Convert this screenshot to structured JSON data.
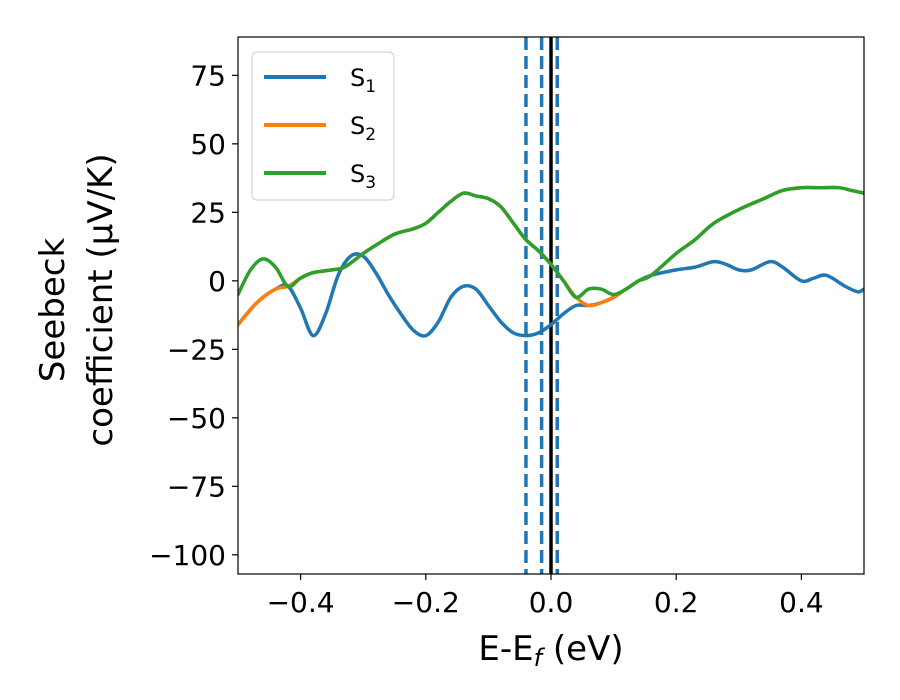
{
  "chart_data": {
    "type": "line",
    "xlabel": "E-E",
    "xlabel_sub": "f",
    "xlabel_unit": " (eV)",
    "ylabel_line1": "Seebeck",
    "ylabel_line2": "coefficient  (μV/K)",
    "xlim": [
      -0.5,
      0.5
    ],
    "ylim": [
      -107,
      89
    ],
    "xticks": [
      -0.4,
      -0.2,
      0.0,
      0.2,
      0.4
    ],
    "xtick_labels": [
      "−0.4",
      "−0.2",
      "0.0",
      "0.2",
      "0.4"
    ],
    "yticks": [
      75,
      50,
      25,
      0,
      -25,
      -50,
      -75,
      -100
    ],
    "ytick_labels": [
      "75",
      "50",
      "25",
      "0",
      "−25",
      "−50",
      "−75",
      "−100"
    ],
    "grid": false,
    "legend_position": "top-left",
    "vlines": [
      {
        "x": -0.04,
        "style": "dashed",
        "color": "#1f77b4"
      },
      {
        "x": -0.015,
        "style": "dashed",
        "color": "#1f77b4"
      },
      {
        "x": 0.01,
        "style": "dashed",
        "color": "#1f77b4"
      },
      {
        "x": 0.0,
        "style": "solid",
        "color": "#000000"
      }
    ],
    "series": [
      {
        "name": "S",
        "name_sub": "1",
        "color": "#1f77b4",
        "points": [
          [
            -0.5,
            -16
          ],
          [
            -0.47,
            -8
          ],
          [
            -0.44,
            -3
          ],
          [
            -0.42,
            -2
          ],
          [
            -0.4,
            -10
          ],
          [
            -0.38,
            -20
          ],
          [
            -0.36,
            -12
          ],
          [
            -0.34,
            2
          ],
          [
            -0.32,
            9
          ],
          [
            -0.3,
            9
          ],
          [
            -0.28,
            3
          ],
          [
            -0.26,
            -5
          ],
          [
            -0.24,
            -12
          ],
          [
            -0.22,
            -18
          ],
          [
            -0.2,
            -20
          ],
          [
            -0.18,
            -15
          ],
          [
            -0.16,
            -6
          ],
          [
            -0.14,
            -2
          ],
          [
            -0.12,
            -3
          ],
          [
            -0.1,
            -9
          ],
          [
            -0.08,
            -15
          ],
          [
            -0.06,
            -19
          ],
          [
            -0.04,
            -20
          ],
          [
            -0.02,
            -19
          ],
          [
            0.0,
            -16
          ],
          [
            0.02,
            -12
          ],
          [
            0.04,
            -9
          ],
          [
            0.06,
            -9
          ],
          [
            0.08,
            -8
          ],
          [
            0.1,
            -6
          ],
          [
            0.12,
            -3
          ],
          [
            0.14,
            0
          ],
          [
            0.16,
            2
          ],
          [
            0.2,
            4
          ],
          [
            0.23,
            5
          ],
          [
            0.26,
            7
          ],
          [
            0.28,
            6
          ],
          [
            0.3,
            4
          ],
          [
            0.32,
            4
          ],
          [
            0.35,
            7
          ],
          [
            0.37,
            5
          ],
          [
            0.4,
            0
          ],
          [
            0.42,
            1
          ],
          [
            0.44,
            2
          ],
          [
            0.47,
            -2
          ],
          [
            0.49,
            -4
          ],
          [
            0.5,
            -3
          ]
        ]
      },
      {
        "name": "S",
        "name_sub": "2",
        "color": "#ff7f0e",
        "points": [
          [
            -0.5,
            -16
          ],
          [
            -0.47,
            -8
          ],
          [
            -0.44,
            -3
          ],
          [
            -0.42,
            -2
          ],
          [
            -0.4,
            1
          ],
          [
            -0.38,
            3
          ],
          [
            -0.35,
            4
          ],
          [
            -0.33,
            5
          ],
          [
            -0.3,
            10
          ],
          [
            -0.28,
            13
          ],
          [
            -0.25,
            17
          ],
          [
            -0.22,
            19
          ],
          [
            -0.2,
            21
          ],
          [
            -0.18,
            25
          ],
          [
            -0.16,
            29
          ],
          [
            -0.14,
            32
          ],
          [
            -0.12,
            31
          ],
          [
            -0.1,
            30
          ],
          [
            -0.08,
            27
          ],
          [
            -0.06,
            21
          ],
          [
            -0.04,
            15
          ],
          [
            -0.02,
            11
          ],
          [
            0.0,
            6
          ],
          [
            0.02,
            0
          ],
          [
            0.04,
            -6
          ],
          [
            0.06,
            -9
          ],
          [
            0.08,
            -8
          ],
          [
            0.1,
            -6
          ],
          [
            0.12,
            -3
          ],
          [
            0.14,
            0
          ],
          [
            0.16,
            2
          ],
          [
            0.2,
            10
          ],
          [
            0.23,
            15
          ],
          [
            0.26,
            21
          ],
          [
            0.3,
            26
          ],
          [
            0.34,
            30
          ],
          [
            0.37,
            33
          ],
          [
            0.4,
            34
          ],
          [
            0.43,
            34
          ],
          [
            0.46,
            34
          ],
          [
            0.48,
            33
          ],
          [
            0.5,
            32
          ]
        ]
      },
      {
        "name": "S",
        "name_sub": "3",
        "color": "#2ca02c",
        "points": [
          [
            -0.5,
            -5
          ],
          [
            -0.48,
            4
          ],
          [
            -0.46,
            8
          ],
          [
            -0.44,
            5
          ],
          [
            -0.42,
            -2
          ],
          [
            -0.4,
            1
          ],
          [
            -0.38,
            3
          ],
          [
            -0.35,
            4
          ],
          [
            -0.33,
            5
          ],
          [
            -0.3,
            10
          ],
          [
            -0.28,
            13
          ],
          [
            -0.25,
            17
          ],
          [
            -0.22,
            19
          ],
          [
            -0.2,
            21
          ],
          [
            -0.18,
            25
          ],
          [
            -0.16,
            29
          ],
          [
            -0.14,
            32
          ],
          [
            -0.12,
            31
          ],
          [
            -0.1,
            30
          ],
          [
            -0.08,
            27
          ],
          [
            -0.06,
            21
          ],
          [
            -0.04,
            15
          ],
          [
            -0.02,
            11
          ],
          [
            0.0,
            6
          ],
          [
            0.02,
            0
          ],
          [
            0.04,
            -6
          ],
          [
            0.06,
            -3
          ],
          [
            0.08,
            -3
          ],
          [
            0.1,
            -5
          ],
          [
            0.12,
            -3
          ],
          [
            0.14,
            0
          ],
          [
            0.16,
            2
          ],
          [
            0.2,
            10
          ],
          [
            0.23,
            15
          ],
          [
            0.26,
            21
          ],
          [
            0.3,
            26
          ],
          [
            0.34,
            30
          ],
          [
            0.37,
            33
          ],
          [
            0.4,
            34
          ],
          [
            0.43,
            34
          ],
          [
            0.46,
            34
          ],
          [
            0.48,
            33
          ],
          [
            0.5,
            32
          ]
        ]
      }
    ]
  }
}
